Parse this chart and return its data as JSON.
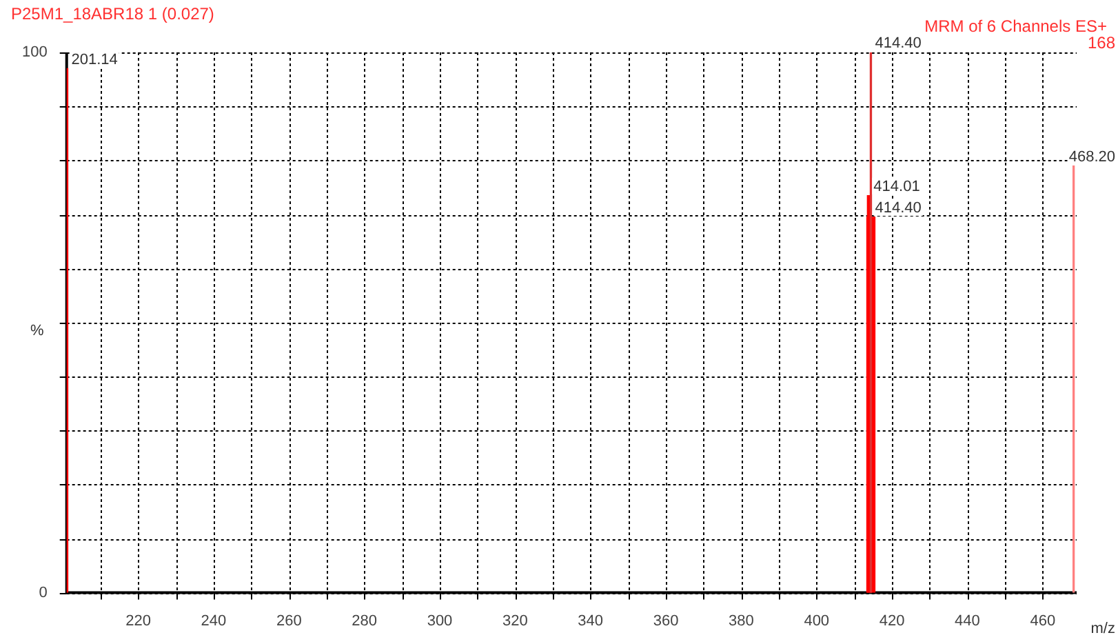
{
  "chart_data": {
    "type": "bar",
    "title": "P25M1_18ABR18 1 (0.027)",
    "subtitle": "MRM of 6 Channels ES+",
    "xlabel": "m/z",
    "ylabel": "%",
    "series": [
      {
        "x": [
          201.14
        ],
        "values": [
          97
        ],
        "color": "#ff0000"
      },
      {
        "x": [
          414.01
        ],
        "values": [
          73.5
        ],
        "color": "#ff0000"
      },
      {
        "x": [
          414.4
        ],
        "values": [
          100
        ],
        "color": "#e03030"
      },
      {
        "x": [
          414.4
        ],
        "values": [
          69.5
        ],
        "color": "#ff0000"
      },
      {
        "x": [
          468.2
        ],
        "values": [
          79
        ],
        "color": "#ff8080"
      }
    ],
    "annotations": [
      "168",
      {
        "text": "201.14",
        "x": 201.14,
        "y": 97
      },
      {
        "text": "414.01",
        "x": 414.01,
        "y": 73.5
      },
      {
        "text": "414.40",
        "x": 414.4,
        "y": 100
      },
      {
        "text": "414.40",
        "x": 414.4,
        "y": 69.5
      },
      {
        "text": "468.20",
        "x": 468.2,
        "y": 79
      }
    ],
    "xlim": [
      201,
      469
    ],
    "xticks": [
      {
        "value": 210,
        "label": null
      },
      220,
      {
        "value": 230,
        "label": null
      },
      240,
      {
        "value": 250,
        "label": null
      },
      260,
      {
        "value": 270,
        "label": null
      },
      280,
      {
        "value": 290,
        "label": null
      },
      300,
      {
        "value": 310,
        "label": null
      },
      320,
      {
        "value": 330,
        "label": null
      },
      340,
      {
        "value": 350,
        "label": null
      },
      360,
      {
        "value": 370,
        "label": null
      },
      380,
      {
        "value": 390,
        "label": null
      },
      400,
      {
        "value": 410,
        "label": null
      },
      420,
      {
        "value": 430,
        "label": null
      },
      440,
      {
        "value": 450,
        "label": null
      },
      460
    ],
    "ylim": [
      0,
      100
    ],
    "yticks": [
      0,
      {
        "value": 10,
        "label": null
      },
      {
        "value": 20,
        "label": null
      },
      {
        "value": 30,
        "label": null
      },
      {
        "value": 40,
        "label": null
      },
      {
        "value": 50,
        "label": null
      },
      {
        "value": 60,
        "label": null
      },
      {
        "value": 70,
        "label": null
      },
      {
        "value": 80,
        "label": null
      },
      {
        "value": 90,
        "label": null
      },
      100
    ],
    "grid": true,
    "legend": false
  }
}
